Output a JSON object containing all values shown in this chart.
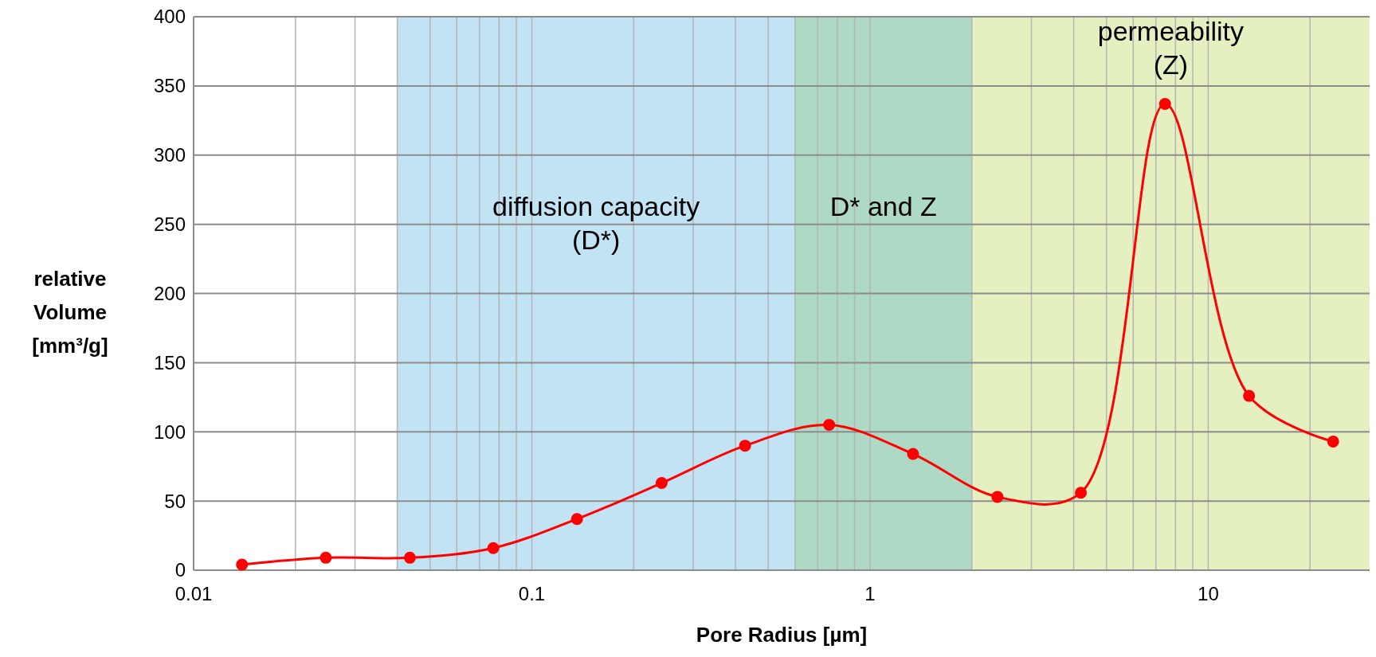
{
  "chart_data": {
    "type": "line",
    "xlabel": "Pore Radius [µm]",
    "ylabel": "relative Volume [mm³/g]",
    "log": "x",
    "xlim": [
      0.01,
      30
    ],
    "xticks": [
      0.01,
      {
        "value": 0.02,
        "label": null
      },
      {
        "value": 0.03,
        "label": null
      },
      {
        "value": 0.04,
        "label": null
      },
      {
        "value": 0.05,
        "label": null
      },
      {
        "value": 0.06,
        "label": null
      },
      {
        "value": 0.07,
        "label": null
      },
      {
        "value": 0.08,
        "label": null
      },
      {
        "value": 0.09,
        "label": null
      },
      0.1,
      {
        "value": 0.2,
        "label": null
      },
      {
        "value": 0.3,
        "label": null
      },
      {
        "value": 0.4,
        "label": null
      },
      {
        "value": 0.5,
        "label": null
      },
      {
        "value": 0.6,
        "label": null
      },
      {
        "value": 0.7,
        "label": null
      },
      {
        "value": 0.8,
        "label": null
      },
      {
        "value": 0.9,
        "label": null
      },
      1,
      {
        "value": 2,
        "label": null
      },
      {
        "value": 3,
        "label": null
      },
      {
        "value": 4,
        "label": null
      },
      {
        "value": 5,
        "label": null
      },
      {
        "value": 6,
        "label": null
      },
      {
        "value": 7,
        "label": null
      },
      {
        "value": 8,
        "label": null
      },
      {
        "value": 9,
        "label": null
      },
      10,
      {
        "value": 20,
        "label": null
      }
    ],
    "ylim": [
      0,
      400
    ],
    "yticks": [
      0,
      50,
      100,
      150,
      200,
      250,
      300,
      350,
      400
    ],
    "grid": true,
    "marker": "circle",
    "line_style": "solid",
    "bands": [
      {
        "axis": "x",
        "from": 0.04,
        "to": 0.6,
        "label": "diffusion capacity\n(D*)",
        "color": "#c1e3f3"
      },
      {
        "axis": "x",
        "from": 0.6,
        "to": 2,
        "label": "D* and Z",
        "color": "#add9c5"
      },
      {
        "axis": "x",
        "from": 2,
        "to": 30,
        "label": "permeability\n(Z)",
        "color": "#e5f0c1"
      }
    ],
    "series": [
      {
        "color": "#ff0000",
        "x": [
          0.0139,
          0.0246,
          0.0436,
          0.0769,
          0.136,
          0.242,
          0.427,
          0.757,
          1.34,
          2.38,
          4.2,
          7.45,
          13.2,
          23.4
        ],
        "values": [
          4,
          9,
          9,
          16,
          37,
          63,
          90,
          105,
          84,
          53,
          56,
          337,
          126,
          93
        ]
      }
    ]
  }
}
